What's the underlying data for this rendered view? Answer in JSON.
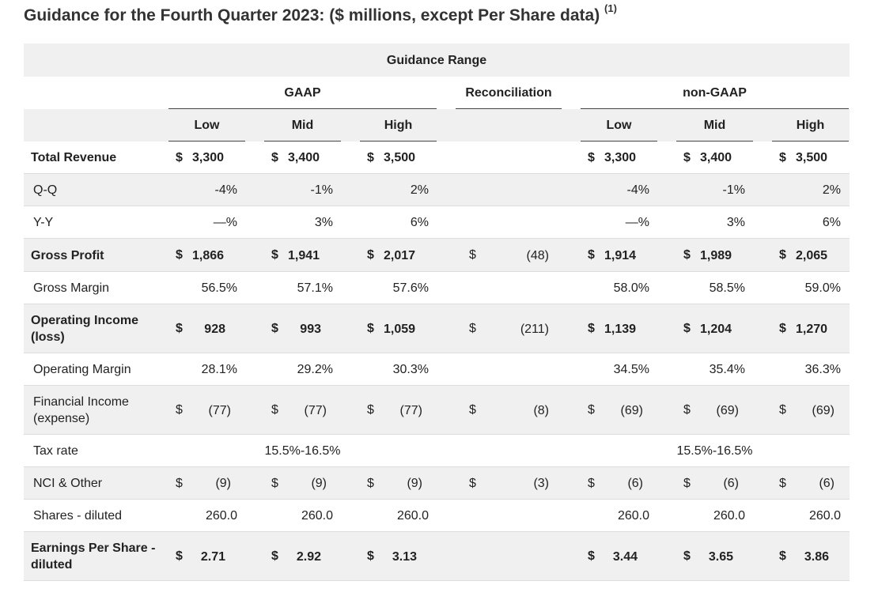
{
  "title": "Guidance for the Fourth Quarter 2023: ($ millions, except Per Share data)",
  "title_note": "(1)",
  "header": {
    "range": "Guidance Range",
    "gaap": "GAAP",
    "reconciliation": "Reconciliation",
    "non_gaap": "non-GAAP",
    "cols": [
      "Low",
      "Mid",
      "High",
      "Low",
      "Mid",
      "High"
    ]
  },
  "currency_symbol": "$",
  "rows": [
    {
      "label": "Total Revenue",
      "bold": true,
      "shade": false,
      "dollars": true,
      "gaap": [
        "3,300",
        "3,400",
        "3,500"
      ],
      "recon": "",
      "nongaap": [
        "3,300",
        "3,400",
        "3,500"
      ]
    },
    {
      "label": "Q-Q",
      "bold": false,
      "shade": true,
      "dollars": false,
      "gaap": [
        "-4%",
        "-1%",
        "2%"
      ],
      "recon": "",
      "nongaap": [
        "-4%",
        "-1%",
        "2%"
      ]
    },
    {
      "label": "Y-Y",
      "bold": false,
      "shade": false,
      "dollars": false,
      "gaap": [
        "—%",
        "3%",
        "6%"
      ],
      "recon": "",
      "nongaap": [
        "—%",
        "3%",
        "6%"
      ]
    },
    {
      "label": "Gross Profit",
      "bold": true,
      "shade": true,
      "dollars": true,
      "gaap": [
        "1,866",
        "1,941",
        "2,017"
      ],
      "recon": "(48)",
      "nongaap": [
        "1,914",
        "1,989",
        "2,065"
      ]
    },
    {
      "label": "Gross Margin",
      "bold": false,
      "shade": false,
      "dollars": false,
      "gaap": [
        "56.5%",
        "57.1%",
        "57.6%"
      ],
      "recon": "",
      "nongaap": [
        "58.0%",
        "58.5%",
        "59.0%"
      ]
    },
    {
      "label": "Operating Income (loss)",
      "bold": true,
      "shade": true,
      "dollars": true,
      "gaap": [
        "928",
        "993",
        "1,059"
      ],
      "recon": "(211)",
      "nongaap": [
        "1,139",
        "1,204",
        "1,270"
      ]
    },
    {
      "label": "Operating Margin",
      "bold": false,
      "shade": false,
      "dollars": false,
      "gaap": [
        "28.1%",
        "29.2%",
        "30.3%"
      ],
      "recon": "",
      "nongaap": [
        "34.5%",
        "35.4%",
        "36.3%"
      ]
    },
    {
      "label": "Financial Income (expense)",
      "bold": false,
      "shade": true,
      "dollars": true,
      "gaap": [
        "(77)",
        "(77)",
        "(77)"
      ],
      "recon": "(8)",
      "nongaap": [
        "(69)",
        "(69)",
        "(69)"
      ]
    },
    {
      "label": "Tax rate",
      "bold": false,
      "shade": false,
      "dollars": false,
      "gaap_span": "15.5%-16.5%",
      "recon": "",
      "nongaap_span": "15.5%-16.5%"
    },
    {
      "label": "NCI & Other",
      "bold": false,
      "shade": true,
      "dollars": true,
      "gaap": [
        "(9)",
        "(9)",
        "(9)"
      ],
      "recon": "(3)",
      "nongaap": [
        "(6)",
        "(6)",
        "(6)"
      ]
    },
    {
      "label": "Shares - diluted",
      "bold": false,
      "shade": false,
      "dollars": false,
      "gaap": [
        "260.0",
        "260.0",
        "260.0"
      ],
      "recon": "",
      "nongaap": [
        "260.0",
        "260.0",
        "260.0"
      ]
    },
    {
      "label": "Earnings Per Share - diluted",
      "bold": true,
      "shade": true,
      "dollars": true,
      "gaap": [
        "2.71",
        "2.92",
        "3.13"
      ],
      "recon": "",
      "nongaap": [
        "3.44",
        "3.65",
        "3.86"
      ]
    }
  ]
}
